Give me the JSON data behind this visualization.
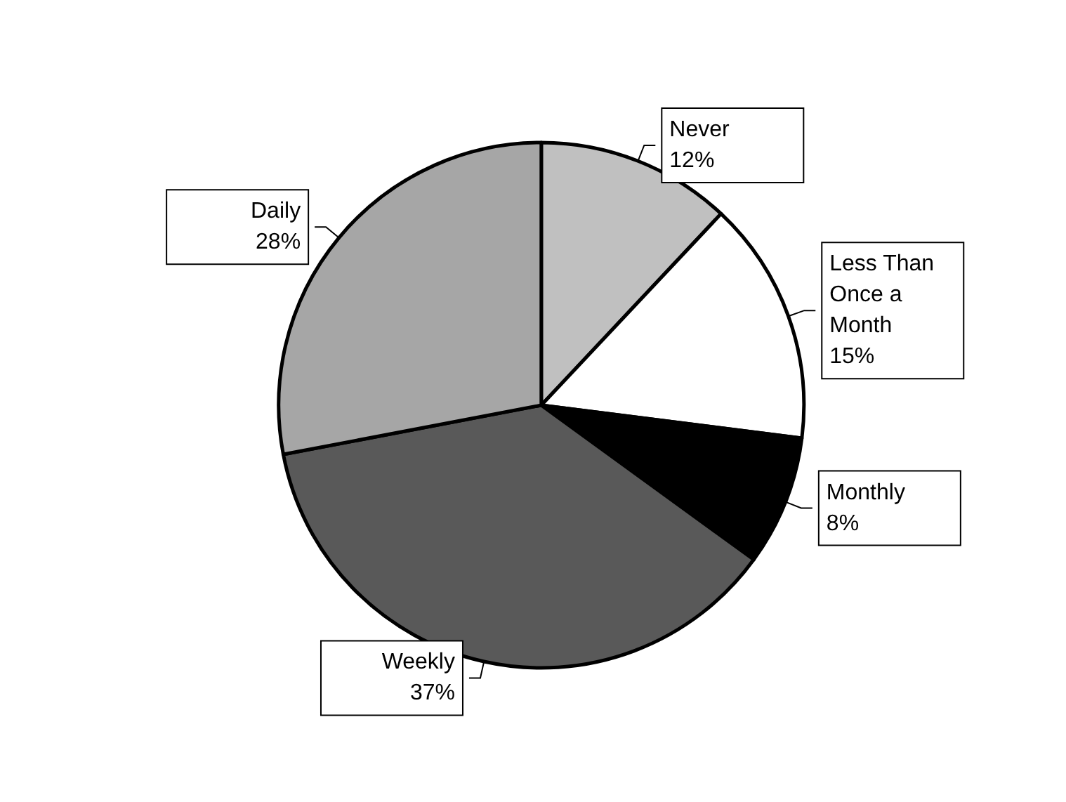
{
  "chart_data": {
    "type": "pie",
    "categories": [
      "Never",
      "Less Than Once a Month",
      "Monthly",
      "Weekly",
      "Daily"
    ],
    "values": [
      12,
      15,
      8,
      37,
      28
    ],
    "colors": [
      "#c0c0c0",
      "#ffffff",
      "#000000",
      "#595959",
      "#a6a6a6"
    ],
    "value_labels": [
      "12%",
      "15%",
      "8%",
      "37%",
      "28%"
    ],
    "legend": false
  }
}
